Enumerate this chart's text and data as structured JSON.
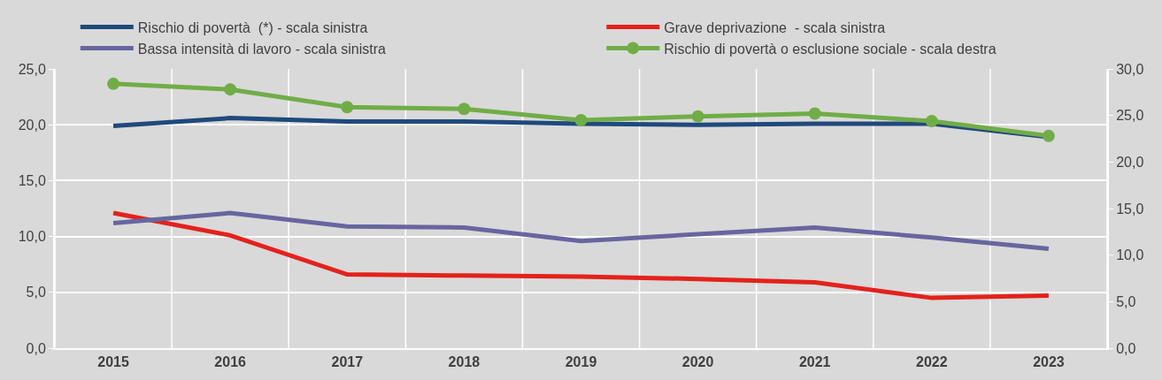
{
  "chart_data": {
    "type": "line",
    "categories": [
      "2015",
      "2016",
      "2017",
      "2018",
      "2019",
      "2020",
      "2021",
      "2022",
      "2023"
    ],
    "series": [
      {
        "name": "Rischio di povertà  (*) - scala sinistra",
        "color": "#1f497d",
        "values": [
          19.9,
          20.6,
          20.3,
          20.3,
          20.1,
          20.0,
          20.1,
          20.1,
          18.9
        ],
        "marker": "none"
      },
      {
        "name": "Grave deprivazione  - scala sinistra",
        "color": "#e3221b",
        "values": [
          12.1,
          10.1,
          6.6,
          6.5,
          6.4,
          6.2,
          5.9,
          4.5,
          4.7
        ],
        "marker": "none"
      },
      {
        "name": "Bassa intensità di lavoro - scala sinistra",
        "color": "#6666a0",
        "values": [
          11.2,
          12.1,
          10.9,
          10.8,
          9.6,
          10.2,
          10.8,
          9.9,
          8.9
        ],
        "marker": "none"
      },
      {
        "name": "Rischio di povertà o esclusione sociale - scala destra",
        "color": "#70ad47",
        "values": [
          28.4,
          27.8,
          25.9,
          25.7,
          24.5,
          24.9,
          25.2,
          24.4,
          22.8
        ],
        "marker": "circle",
        "axis": "y2"
      }
    ],
    "ylim": [
      0,
      25
    ],
    "yticks": [
      {
        "value": 0,
        "label": "0,0"
      },
      {
        "value": 5,
        "label": "5,0"
      },
      {
        "value": 10,
        "label": "10,0"
      },
      {
        "value": 15,
        "label": "15,0"
      },
      {
        "value": 20,
        "label": "20,0"
      },
      {
        "value": 25,
        "label": "25,0"
      }
    ],
    "y2lim": [
      0,
      30
    ],
    "y2ticks": [
      {
        "value": 0,
        "label": "0,0"
      },
      {
        "value": 5,
        "label": "5,0"
      },
      {
        "value": 10,
        "label": "10,0"
      },
      {
        "value": 15,
        "label": "15,0"
      },
      {
        "value": 20,
        "label": "20,0"
      },
      {
        "value": 25,
        "label": "25,0"
      },
      {
        "value": 30,
        "label": "30,0"
      }
    ],
    "grid": true,
    "legend": "top",
    "line_style": "solid"
  }
}
